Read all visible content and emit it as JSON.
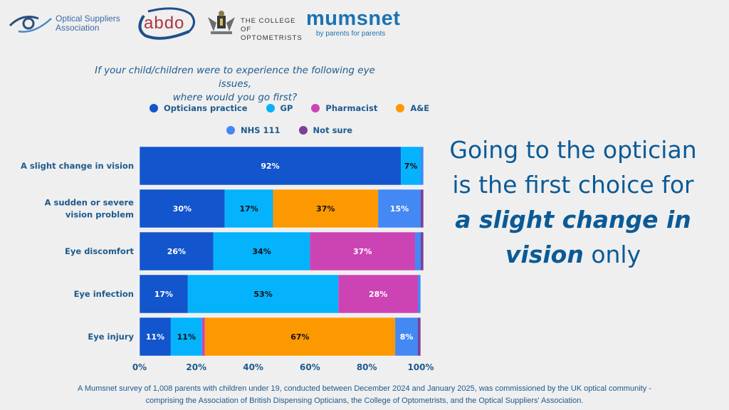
{
  "logos": {
    "osa": {
      "line1": "Optical Suppliers",
      "line2": "Association"
    },
    "abdo": {
      "text": "abdo"
    },
    "college": {
      "line1": "THE COLLEGE OF",
      "line2": "OPTOMETRISTS"
    },
    "mumsnet": {
      "word": "mumsnet",
      "tagline": "by parents for parents"
    }
  },
  "headline": {
    "part1": "Going to the optician is the first choice for ",
    "emphasis": "a slight change in vision",
    "part2": " only"
  },
  "footnote": {
    "line1": "A Mumsnet survey of 1,008 parents with children under 19, conducted between December 2024 and January 2025, was commissioned by the UK optical community -",
    "line2": "comprising the Association of British Dispensing Opticians, the College of Optometrists, and the Optical Suppliers' Association."
  },
  "chart_data": {
    "type": "bar",
    "orientation": "horizontal",
    "stacked": true,
    "title_line1": "If your child/children were to experience the following eye issues,",
    "title_line2": "where would you go first?",
    "categories": [
      "A slight change in vision",
      "A sudden or severe vision problem",
      "Eye discomfort",
      "Eye infection",
      "Eye injury"
    ],
    "category_lines": [
      [
        "A slight change in vision"
      ],
      [
        "A sudden or severe",
        "vision problem"
      ],
      [
        "Eye discomfort"
      ],
      [
        "Eye infection"
      ],
      [
        "Eye injury"
      ]
    ],
    "series": [
      {
        "name": "Opticians practice",
        "color": "#1255cc",
        "label_color": "#ffffff",
        "values": [
          92,
          30,
          26,
          17,
          11
        ]
      },
      {
        "name": "GP",
        "color": "#05b2fc",
        "label_color": "#111111",
        "values": [
          7,
          17,
          34,
          53,
          11
        ]
      },
      {
        "name": "Pharmacist",
        "color": "#cc44b3",
        "label_color": "#ffffff",
        "values": [
          0,
          0,
          37,
          28,
          1
        ]
      },
      {
        "name": "A&E",
        "color": "#fd9900",
        "label_color": "#111111",
        "values": [
          0,
          37,
          0,
          0,
          67
        ]
      },
      {
        "name": "NHS 111",
        "color": "#4488f4",
        "label_color": "#ffffff",
        "values": [
          1,
          15,
          2,
          1,
          8
        ]
      },
      {
        "name": "Not sure",
        "color": "#7e3f98",
        "label_color": "#ffffff",
        "values": [
          0,
          1,
          1,
          0,
          1
        ]
      }
    ],
    "label_threshold": 5,
    "xlim": [
      0,
      100
    ],
    "xticks": [
      "0%",
      "20%",
      "40%",
      "60%",
      "80%",
      "100%"
    ],
    "xlabel": "",
    "ylabel": "",
    "legend": {
      "placement": "top",
      "rows": [
        [
          "Opticians practice",
          "GP",
          "Pharmacist",
          "A&E"
        ],
        [
          "NHS 111",
          "Not sure"
        ]
      ]
    },
    "grid": false
  }
}
